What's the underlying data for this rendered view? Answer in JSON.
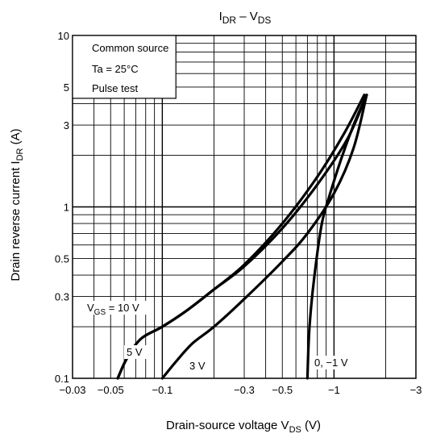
{
  "chart_data": {
    "type": "line",
    "title": {
      "base": "I",
      "sub": "DR",
      "mid": " – V",
      "sub2": "DS"
    },
    "xlabel": {
      "text": "Drain-source voltage   V",
      "sub": "DS",
      "unit": "   (V)"
    },
    "ylabel": {
      "text": "Drain reverse current   I",
      "sub": "DR",
      "unit": "   (A)"
    },
    "x_scale": "log-negative",
    "y_scale": "log",
    "xlim": [
      -0.03,
      -3
    ],
    "ylim": [
      0.1,
      10
    ],
    "x_ticks": [
      {
        "value": -0.03,
        "label": "−0.03"
      },
      {
        "value": -0.05,
        "label": "−0.05"
      },
      {
        "value": -0.1,
        "label": "−0.1"
      },
      {
        "value": -0.3,
        "label": "−0.3"
      },
      {
        "value": -0.5,
        "label": "−0.5"
      },
      {
        "value": -1,
        "label": "−1"
      },
      {
        "value": -3,
        "label": "−3"
      }
    ],
    "y_ticks": [
      {
        "value": 0.1,
        "label": "0.1"
      },
      {
        "value": 0.3,
        "label": "0.3"
      },
      {
        "value": 0.5,
        "label": "0.5"
      },
      {
        "value": 1,
        "label": "1"
      },
      {
        "value": 3,
        "label": "3"
      },
      {
        "value": 5,
        "label": "5"
      },
      {
        "value": 10,
        "label": "10"
      }
    ],
    "grid": true,
    "conditions": [
      "Common source",
      "Ta = 25°C",
      "Pulse test"
    ],
    "series": [
      {
        "label": {
          "base": "V",
          "sub": "GS",
          "rest": " = 10 V"
        },
        "points": [
          [
            -0.055,
            0.1
          ],
          [
            -0.062,
            0.13
          ],
          [
            -0.075,
            0.17
          ],
          [
            -0.1,
            0.2
          ],
          [
            -0.14,
            0.25
          ],
          [
            -0.2,
            0.33
          ],
          [
            -0.3,
            0.45
          ],
          [
            -0.5,
            0.75
          ],
          [
            -0.8,
            1.35
          ],
          [
            -1.2,
            2.5
          ],
          [
            -1.55,
            4.5
          ]
        ]
      },
      {
        "label": {
          "base": "5 V",
          "sub": "",
          "rest": ""
        },
        "points": [
          [
            -0.055,
            0.1
          ],
          [
            -0.062,
            0.13
          ],
          [
            -0.075,
            0.17
          ],
          [
            -0.1,
            0.2
          ],
          [
            -0.14,
            0.25
          ],
          [
            -0.2,
            0.33
          ],
          [
            -0.3,
            0.46
          ],
          [
            -0.5,
            0.8
          ],
          [
            -0.8,
            1.5
          ],
          [
            -1.15,
            2.7
          ],
          [
            -1.5,
            4.5
          ]
        ]
      },
      {
        "label": {
          "base": "3 V",
          "sub": "",
          "rest": ""
        },
        "points": [
          [
            -0.1,
            0.1
          ],
          [
            -0.12,
            0.125
          ],
          [
            -0.15,
            0.16
          ],
          [
            -0.2,
            0.2
          ],
          [
            -0.3,
            0.29
          ],
          [
            -0.5,
            0.48
          ],
          [
            -0.7,
            0.7
          ],
          [
            -1,
            1.2
          ],
          [
            -1.3,
            2.2
          ],
          [
            -1.55,
            4.5
          ]
        ]
      },
      {
        "label": {
          "base": "0, −1 V",
          "sub": "",
          "rest": ""
        },
        "points": [
          [
            -0.7,
            0.1
          ],
          [
            -0.72,
            0.2
          ],
          [
            -0.77,
            0.4
          ],
          [
            -0.85,
            0.8
          ],
          [
            -0.95,
            1.2
          ],
          [
            -1.1,
            1.9
          ],
          [
            -1.3,
            3.0
          ],
          [
            -1.55,
            4.5
          ]
        ]
      }
    ]
  }
}
